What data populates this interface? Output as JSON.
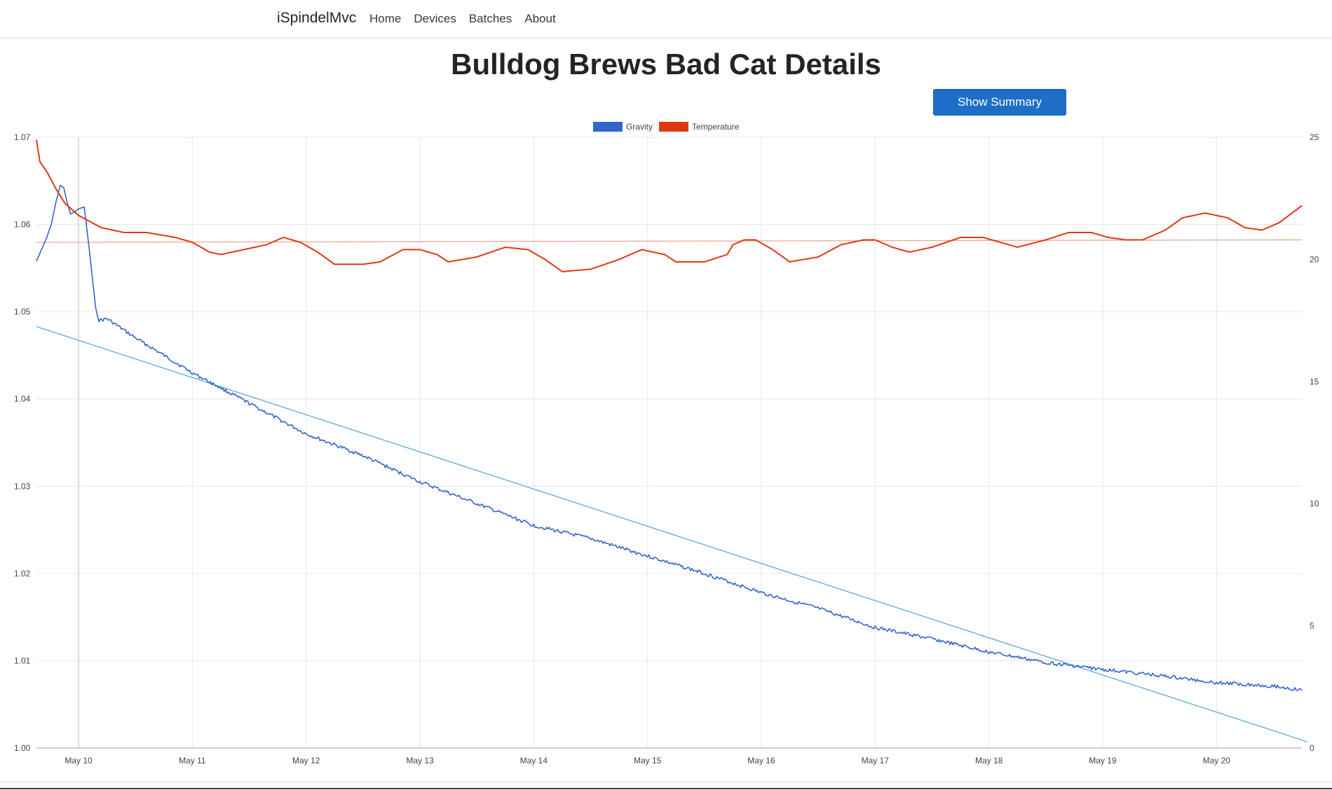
{
  "navbar": {
    "brand": "iSpindelMvc",
    "links": [
      "Home",
      "Devices",
      "Batches",
      "About"
    ]
  },
  "page": {
    "title": "Bulldog Brews Bad Cat Details",
    "summary_button": "Show Summary"
  },
  "colors": {
    "gravity": "#3366cc",
    "temperature": "#dc3912",
    "gravity_trend": "#4aa3df",
    "temperature_trend": "#f0a58e",
    "grid": "#e6e6e6"
  },
  "chart_data": {
    "type": "line",
    "legend": {
      "position": "top",
      "entries": [
        "Gravity",
        "Temperature"
      ]
    },
    "grid": true,
    "x_tick_labels": [
      "May 10",
      "May 11",
      "May 12",
      "May 13",
      "May 14",
      "May 15",
      "May 16",
      "May 17",
      "May 18",
      "May 19",
      "May 20"
    ],
    "xlim_days": [
      9.63,
      20.75
    ],
    "y_left": {
      "ylim": [
        1.0,
        1.07
      ],
      "ticks": [
        "1.00",
        "1.01",
        "1.02",
        "1.03",
        "1.04",
        "1.05",
        "1.06",
        "1.07"
      ]
    },
    "y_right": {
      "ylim": [
        0,
        25
      ],
      "ticks": [
        "0",
        "5",
        "10",
        "15",
        "20",
        "25"
      ]
    },
    "series": [
      {
        "name": "Gravity",
        "axis": "left",
        "x_days": [
          9.63,
          9.67,
          9.72,
          9.76,
          9.8,
          9.84,
          9.87,
          9.9,
          9.93,
          9.97,
          10.0,
          10.05,
          10.1,
          10.12,
          10.15,
          10.18,
          10.25,
          10.5,
          11.0,
          11.5,
          12.0,
          12.5,
          13.0,
          13.5,
          14.0,
          14.5,
          15.0,
          15.5,
          16.0,
          16.5,
          17.0,
          17.5,
          18.0,
          18.5,
          19.0,
          19.5,
          20.0,
          20.5,
          20.75
        ],
        "y": [
          1.0558,
          1.057,
          1.0585,
          1.06,
          1.0625,
          1.0645,
          1.0642,
          1.0625,
          1.0612,
          1.0615,
          1.0618,
          1.062,
          1.0565,
          1.054,
          1.0505,
          1.049,
          1.0492,
          1.047,
          1.043,
          1.0395,
          1.036,
          1.0335,
          1.0305,
          1.028,
          1.0255,
          1.024,
          1.022,
          1.02,
          1.0178,
          1.016,
          1.0138,
          1.0125,
          1.011,
          1.0098,
          1.009,
          1.0083,
          1.0075,
          1.0071,
          1.0066
        ]
      },
      {
        "name": "Temperature",
        "axis": "right",
        "x_days": [
          9.63,
          9.66,
          9.72,
          9.8,
          9.88,
          10.0,
          10.2,
          10.4,
          10.6,
          10.85,
          11.0,
          11.15,
          11.25,
          11.45,
          11.65,
          11.8,
          11.95,
          12.1,
          12.25,
          12.5,
          12.65,
          12.85,
          13.0,
          13.15,
          13.25,
          13.5,
          13.75,
          13.95,
          14.1,
          14.25,
          14.5,
          14.75,
          14.95,
          15.15,
          15.25,
          15.5,
          15.7,
          15.75,
          15.85,
          15.95,
          16.1,
          16.25,
          16.5,
          16.7,
          16.9,
          17.0,
          17.15,
          17.3,
          17.5,
          17.75,
          17.95,
          18.1,
          18.25,
          18.5,
          18.7,
          18.9,
          19.05,
          19.2,
          19.35,
          19.55,
          19.7,
          19.9,
          20.1,
          20.25,
          20.4,
          20.55,
          20.75
        ],
        "y": [
          24.9,
          24.0,
          23.6,
          22.9,
          22.3,
          21.8,
          21.3,
          21.1,
          21.1,
          20.9,
          20.7,
          20.3,
          20.2,
          20.4,
          20.6,
          20.9,
          20.7,
          20.3,
          19.8,
          19.8,
          19.9,
          20.4,
          20.4,
          20.2,
          19.9,
          20.1,
          20.5,
          20.4,
          20.0,
          19.5,
          19.6,
          20.0,
          20.4,
          20.2,
          19.9,
          19.9,
          20.2,
          20.6,
          20.8,
          20.8,
          20.4,
          19.9,
          20.1,
          20.6,
          20.8,
          20.8,
          20.5,
          20.3,
          20.5,
          20.9,
          20.9,
          20.7,
          20.5,
          20.8,
          21.1,
          21.1,
          20.9,
          20.8,
          20.8,
          21.2,
          21.7,
          21.9,
          21.7,
          21.3,
          21.2,
          21.5,
          22.2
        ]
      }
    ],
    "trendlines": [
      {
        "series": "Gravity",
        "axis": "left",
        "x_days": [
          9.63,
          20.8
        ],
        "y": [
          1.0483,
          1.0007
        ]
      },
      {
        "series": "Temperature",
        "axis": "right",
        "x_days": [
          9.63,
          20.75
        ],
        "y": [
          20.7,
          20.8
        ]
      }
    ]
  }
}
